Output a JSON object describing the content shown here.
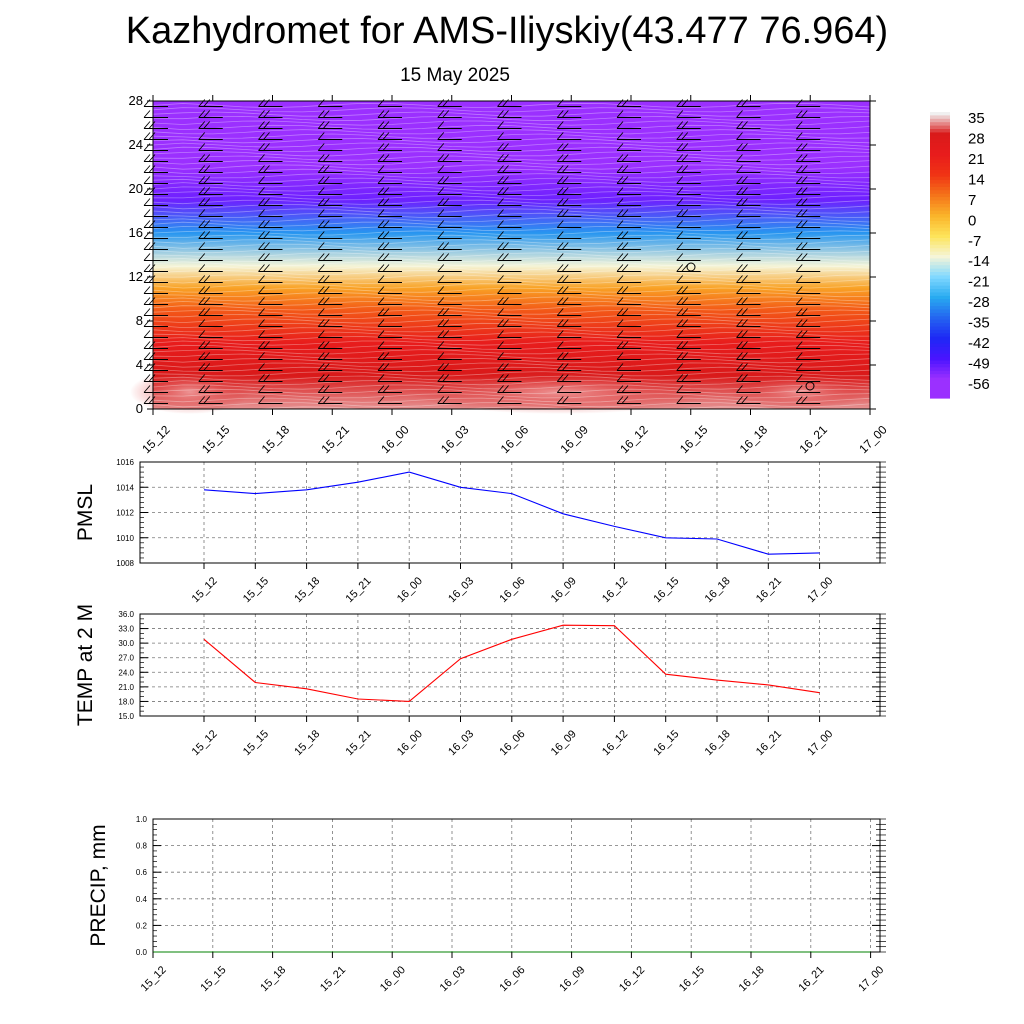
{
  "title": "Kazhydromet for AMS-Iliyskiy(43.477 76.964)",
  "subtitle": "15 May 2025",
  "chart_data": [
    {
      "type": "heatmap",
      "name": "vertical temperature and wind profile",
      "y_ticks": [
        0,
        4,
        8,
        12,
        16,
        20,
        24,
        28
      ],
      "ylim": [
        0,
        28
      ],
      "x_tick_labels": [
        "15_12",
        "15_15",
        "15_18",
        "15_21",
        "16_00",
        "16_03",
        "16_06",
        "16_09",
        "16_12",
        "16_15",
        "16_18",
        "16_21",
        "17_00"
      ],
      "colorbar": {
        "labels": [
          "35",
          "28",
          "21",
          "14",
          "7",
          "0",
          "-7",
          "-14",
          "-21",
          "-28",
          "-35",
          "-42",
          "-49",
          "-56"
        ],
        "colors": [
          "#f0f0f0",
          "#d91a1a",
          "#e81c1c",
          "#f03414",
          "#f5741a",
          "#fab42a",
          "#fde45a",
          "#f5f5d8",
          "#80d8ff",
          "#28aaf0",
          "#2464f0",
          "#1e28f5",
          "#4a14ff",
          "#9b30ff"
        ]
      },
      "temperature_bands": [
        {
          "level": 0,
          "value": 32
        },
        {
          "level": 3,
          "value": 28
        },
        {
          "level": 6,
          "value": 21
        },
        {
          "level": 9,
          "value": 10
        },
        {
          "level": 11,
          "value": 2
        },
        {
          "level": 13,
          "value": -14
        },
        {
          "level": 16,
          "value": -30
        },
        {
          "level": 19,
          "value": -52
        },
        {
          "level": 22,
          "value": -56
        },
        {
          "level": 28,
          "value": -56
        }
      ]
    },
    {
      "type": "line",
      "ylabel": "PMSL",
      "color": "#0000ff",
      "categories": [
        "15_12",
        "15_15",
        "15_18",
        "15_21",
        "16_00",
        "16_03",
        "16_06",
        "16_09",
        "16_12",
        "16_15",
        "16_18",
        "16_21",
        "17_00"
      ],
      "values": [
        1013.8,
        1013.5,
        1013.8,
        1014.4,
        1015.2,
        1014.0,
        1013.5,
        1011.9,
        1010.9,
        1010.0,
        1009.9,
        1008.7,
        1008.8
      ],
      "ylim": [
        1008,
        1016
      ],
      "y_ticks": [
        "1008",
        "1010",
        "1012",
        "1014",
        "1016"
      ]
    },
    {
      "type": "line",
      "ylabel": "TEMP at 2 M",
      "color": "#ff0000",
      "categories": [
        "15_12",
        "15_15",
        "15_18",
        "15_21",
        "16_00",
        "16_03",
        "16_06",
        "16_09",
        "16_12",
        "16_15",
        "16_18",
        "16_21",
        "17_00"
      ],
      "values": [
        30.8,
        21.9,
        20.6,
        18.5,
        18.0,
        26.8,
        30.8,
        33.7,
        33.6,
        23.6,
        22.4,
        21.4,
        19.8
      ],
      "ylim": [
        15,
        36
      ],
      "y_ticks": [
        "15.0",
        "18.0",
        "21.0",
        "24.0",
        "27.0",
        "30.0",
        "33.0",
        "36.0"
      ]
    },
    {
      "type": "line",
      "ylabel": "PRECIP, mm",
      "color": "#008000",
      "categories": [
        "15_12",
        "15_15",
        "15_18",
        "15_21",
        "16_00",
        "16_03",
        "16_06",
        "16_09",
        "16_12",
        "16_15",
        "16_18",
        "16_21",
        "17_00"
      ],
      "values": [
        0,
        0,
        0,
        0,
        0,
        0,
        0,
        0,
        0,
        0,
        0,
        0,
        0
      ],
      "ylim": [
        0,
        1
      ],
      "y_ticks": [
        "0.0",
        "0.2",
        "0.4",
        "0.6",
        "0.8",
        "1.0"
      ]
    }
  ]
}
